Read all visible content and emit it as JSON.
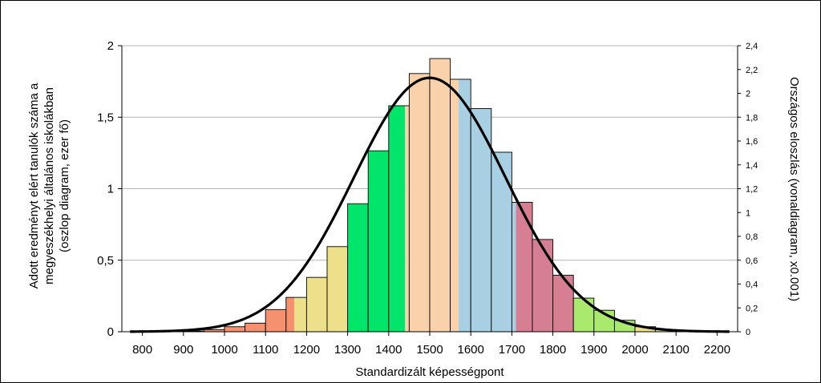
{
  "chart_data": {
    "type": "bar",
    "title": "",
    "xlabel": "Standardizált képességpont",
    "ylabel_lines": [
      "Adott eredményt elért tanulók száma a",
      "megyeszékhelyi általános iskolákban",
      "(oszlop diagram, ezer fő)"
    ],
    "y2label": "Országos eloszlás (vonaldiagram, x0.001)",
    "xlim": [
      750,
      2250
    ],
    "ylim": [
      0,
      2
    ],
    "y2lim": [
      0,
      2.4
    ],
    "grid": "horizontal",
    "x_ticks": [
      800,
      900,
      1000,
      1100,
      1200,
      1300,
      1400,
      1500,
      1600,
      1700,
      1800,
      1900,
      2000,
      2100,
      2200
    ],
    "y_ticks": [
      0,
      0.5,
      1,
      1.5,
      2
    ],
    "y_tick_labels": [
      "0",
      "0,5",
      "1",
      "1,5",
      "2"
    ],
    "y2_ticks": [
      0,
      0.2,
      0.4,
      0.6,
      0.8,
      1,
      1.2,
      1.4,
      1.6,
      1.8,
      2,
      2.2,
      2.4
    ],
    "y2_tick_labels": [
      "0",
      "0,2",
      "0,4",
      "0,6",
      "0,8",
      "1",
      "1,2",
      "1,4",
      "1,6",
      "1,8",
      "2",
      "2,2",
      "2,4"
    ],
    "bin_width": 50,
    "bars": [
      {
        "start": 800,
        "value": 0.002,
        "color": "#f5916e"
      },
      {
        "start": 850,
        "value": 0.003,
        "color": "#f5916e"
      },
      {
        "start": 900,
        "value": 0.005,
        "color": "#f5916e"
      },
      {
        "start": 950,
        "value": 0.015,
        "color": "#f5916e"
      },
      {
        "start": 1000,
        "value": 0.035,
        "color": "#f5916e"
      },
      {
        "start": 1050,
        "value": 0.06,
        "color": "#f5916e"
      },
      {
        "start": 1100,
        "value": 0.155,
        "color": "#f5916e"
      },
      {
        "start": 1150,
        "value": 0.24,
        "color": "#f5916e",
        "split_at": 1170,
        "color2": "#ede08a"
      },
      {
        "start": 1200,
        "value": 0.38,
        "color": "#ede08a"
      },
      {
        "start": 1250,
        "value": 0.595,
        "color": "#ede08a"
      },
      {
        "start": 1300,
        "value": 0.895,
        "color": "#00e56a"
      },
      {
        "start": 1350,
        "value": 1.265,
        "color": "#00e56a"
      },
      {
        "start": 1400,
        "value": 1.58,
        "color": "#00e56a",
        "split_at": 1440,
        "color2": "#f9d1aa"
      },
      {
        "start": 1450,
        "value": 1.805,
        "color": "#f9d1aa"
      },
      {
        "start": 1500,
        "value": 1.91,
        "color": "#f9d1aa"
      },
      {
        "start": 1550,
        "value": 1.765,
        "color": "#f9d1aa",
        "split_at": 1570,
        "color2": "#a8d0e2"
      },
      {
        "start": 1600,
        "value": 1.56,
        "color": "#a8d0e2"
      },
      {
        "start": 1650,
        "value": 1.255,
        "color": "#a8d0e2"
      },
      {
        "start": 1700,
        "value": 0.905,
        "color": "#a8d0e2",
        "split_at": 1710,
        "color2": "#d67e92"
      },
      {
        "start": 1750,
        "value": 0.645,
        "color": "#d67e92"
      },
      {
        "start": 1800,
        "value": 0.395,
        "color": "#d67e92"
      },
      {
        "start": 1850,
        "value": 0.235,
        "color": "#a9ea6e"
      },
      {
        "start": 1900,
        "value": 0.15,
        "color": "#a9ea6e"
      },
      {
        "start": 1950,
        "value": 0.08,
        "color": "#a9ea6e"
      },
      {
        "start": 2000,
        "value": 0.035,
        "color": "#ede08a"
      },
      {
        "start": 2050,
        "value": 0.015,
        "color": "#ede08a"
      },
      {
        "start": 2100,
        "value": 0.005,
        "color": "#ede08a"
      },
      {
        "start": 2150,
        "value": 0.003,
        "color": "#ede08a"
      }
    ],
    "curve": {
      "axis": "right",
      "distribution": "normal",
      "mean": 1500,
      "sd": 185,
      "peak": 2.13,
      "color": "#000000"
    }
  }
}
